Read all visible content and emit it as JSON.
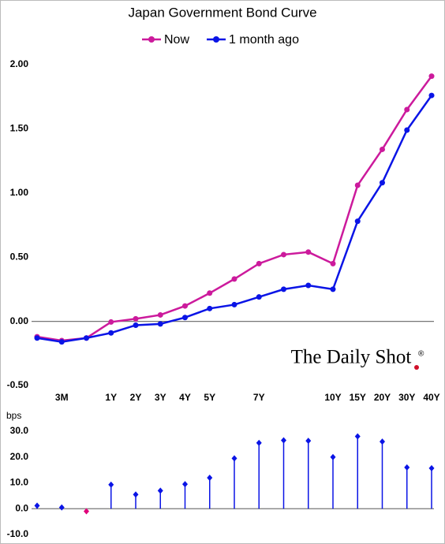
{
  "chart_data": [
    {
      "type": "line",
      "title": "Japan Government Bond Curve",
      "categories": [
        null,
        "3M",
        null,
        "1Y",
        "2Y",
        "3Y",
        "4Y",
        "5Y",
        null,
        "7Y",
        null,
        null,
        "10Y",
        "15Y",
        "20Y",
        "30Y",
        "40Y"
      ],
      "series": [
        {
          "name": "Now",
          "color": "#cc1a9c",
          "values": [
            -0.12,
            -0.15,
            -0.13,
            -0.005,
            0.02,
            0.05,
            0.12,
            0.22,
            0.33,
            0.45,
            0.52,
            0.54,
            0.45,
            1.06,
            1.34,
            1.65,
            1.91
          ]
        },
        {
          "name": "1 month ago",
          "color": "#0a14e6",
          "values": [
            -0.13,
            -0.16,
            -0.13,
            -0.09,
            -0.03,
            -0.02,
            0.03,
            0.1,
            0.13,
            0.19,
            0.25,
            0.28,
            0.25,
            0.78,
            1.08,
            1.49,
            1.76
          ]
        }
      ],
      "ylim": [
        -0.5,
        2.0
      ],
      "yticks": [
        {
          "value": 2.0,
          "label": "2.00"
        },
        {
          "value": 1.5,
          "label": "1.50"
        },
        {
          "value": 1.0,
          "label": "1.00"
        },
        {
          "value": 0.5,
          "label": "0.50"
        },
        {
          "value": 0,
          "label": "0.00"
        },
        {
          "value": -0.5,
          "label": "-0.50"
        }
      ],
      "legend": "top",
      "watermark": "The Daily Shot"
    },
    {
      "type": "stem",
      "ylabel": "bps",
      "values": [
        1.2,
        0.5,
        -1.0,
        9.3,
        5.5,
        7.0,
        9.5,
        12.0,
        19.5,
        25.5,
        26.5,
        26.3,
        20.0,
        28.0,
        26.0,
        16.0,
        15.7
      ],
      "color": "#0a14e6",
      "negative_color": "#e0007a",
      "ylim": [
        -10,
        30
      ],
      "yticks": [
        {
          "value": 30,
          "label": "30.0"
        },
        {
          "value": 20,
          "label": "20.0"
        },
        {
          "value": 10,
          "label": "10.0"
        },
        {
          "value": 0,
          "label": "0.0"
        },
        {
          "value": -10,
          "label": "-10.0"
        }
      ]
    }
  ]
}
